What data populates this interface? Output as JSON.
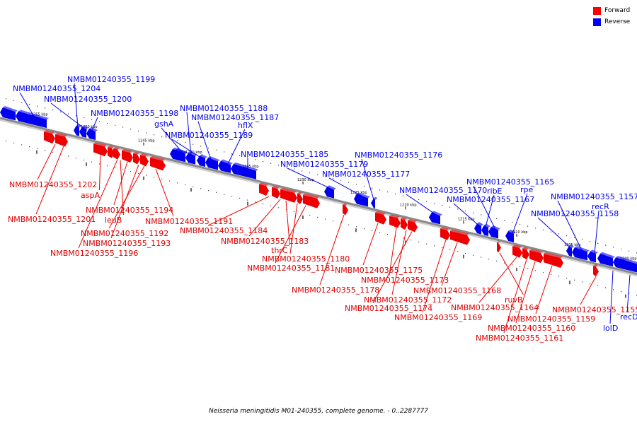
{
  "legend": [
    {
      "label": "Forward",
      "color": "#ff0000"
    },
    {
      "label": "Reverse",
      "color": "#0000ff"
    }
  ],
  "caption": "Neisseria meningitidis M01-240355, complete genome. - 0..2287777",
  "colors": {
    "forward": "#ee0000",
    "reverse": "#0000ee",
    "backbone": "#8a8a8a"
  },
  "scale_labels": [
    "1255 kbp",
    "1250 kbp",
    "1245 kbp",
    "1240 kbp",
    "1235 kbp",
    "1230 kbp",
    "1225 kbp",
    "1220 kbp",
    "1215 kbp",
    "1210 kbp",
    "1205 kbp",
    "1200 kbp"
  ],
  "reverse_genes": [
    {
      "name": "NMBM01240355_1204",
      "label": "NMBM01240355_1204"
    },
    {
      "name": "NMBM01240355_1199",
      "label": "NMBM01240355_1199"
    },
    {
      "name": "NMBM01240355_1200",
      "label": "NMBM01240355_1200"
    },
    {
      "name": "NMBM01240355_1198",
      "label": "NMBM01240355_1198"
    },
    {
      "name": "gshA",
      "label": "gshA"
    },
    {
      "name": "NMBM01240355_1189",
      "label": "NMBM01240355_1189"
    },
    {
      "name": "NMBM01240355_1188",
      "label": "NMBM01240355_1188"
    },
    {
      "name": "NMBM01240355_1187",
      "label": "NMBM01240355_1187"
    },
    {
      "name": "hflX",
      "label": "hflX"
    },
    {
      "name": "NMBM01240355_1185",
      "label": "NMBM01240355_1185"
    },
    {
      "name": "NMBM01240355_1179",
      "label": "NMBM01240355_1179"
    },
    {
      "name": "NMBM01240355_1177",
      "label": "NMBM01240355_1177"
    },
    {
      "name": "NMBM01240355_1176",
      "label": "NMBM01240355_1176"
    },
    {
      "name": "NMBM01240355_1170",
      "label": "NMBM01240355_1170"
    },
    {
      "name": "NMBM01240355_1167",
      "label": "NMBM01240355_1167"
    },
    {
      "name": "ribE",
      "label": "ribE"
    },
    {
      "name": "NMBM01240355_1165",
      "label": "NMBM01240355_1165"
    },
    {
      "name": "rpe",
      "label": "rpe"
    },
    {
      "name": "NMBM01240355_1158",
      "label": "NMBM01240355_1158"
    },
    {
      "name": "NMBM01240355_1157",
      "label": "NMBM01240355_1157"
    },
    {
      "name": "recR",
      "label": "recR"
    },
    {
      "name": "lolD",
      "label": "lolD"
    },
    {
      "name": "recD",
      "label": "recD"
    }
  ],
  "forward_genes": [
    {
      "name": "NMBM01240355_1202",
      "label": "NMBM01240355_1202"
    },
    {
      "name": "NMBM01240355_1201",
      "label": "NMBM01240355_1201"
    },
    {
      "name": "aspA",
      "label": "aspA"
    },
    {
      "name": "NMBM01240355_1196",
      "label": "NMBM01240355_1196"
    },
    {
      "name": "leuB",
      "label": "leuB"
    },
    {
      "name": "NMBM01240355_1194",
      "label": "NMBM01240355_1194"
    },
    {
      "name": "NMBM01240355_1193",
      "label": "NMBM01240355_1193"
    },
    {
      "name": "NMBM01240355_1192",
      "label": "NMBM01240355_1192"
    },
    {
      "name": "NMBM01240355_1191",
      "label": "NMBM01240355_1191"
    },
    {
      "name": "NMBM01240355_1184",
      "label": "NMBM01240355_1184"
    },
    {
      "name": "NMBM01240355_1183",
      "label": "NMBM01240355_1183"
    },
    {
      "name": "thrC",
      "label": "thrC"
    },
    {
      "name": "NMBM01240355_1180",
      "label": "NMBM01240355_1180"
    },
    {
      "name": "NMBM01240355_1181",
      "label": "NMBM01240355_1181"
    },
    {
      "name": "NMBM01240355_1178",
      "label": "NMBM01240355_1178"
    },
    {
      "name": "NMBM01240355_1175",
      "label": "NMBM01240355_1175"
    },
    {
      "name": "NMBM01240355_1173",
      "label": "NMBM01240355_1173"
    },
    {
      "name": "NMBM01240355_1172",
      "label": "NMBM01240355_1172"
    },
    {
      "name": "NMBM01240355_1174",
      "label": "NMBM01240355_1174"
    },
    {
      "name": "NMBM01240355_1169",
      "label": "NMBM01240355_1169"
    },
    {
      "name": "NMBM01240355_1168",
      "label": "NMBM01240355_1168"
    },
    {
      "name": "ruvB",
      "label": "ruvB"
    },
    {
      "name": "NMBM01240355_1164",
      "label": "NMBM01240355_1164"
    },
    {
      "name": "NMBM01240355_1159",
      "label": "NMBM01240355_1159"
    },
    {
      "name": "NMBM01240355_1160",
      "label": "NMBM01240355_1160"
    },
    {
      "name": "NMBM01240355_1161",
      "label": "NMBM01240355_1161"
    },
    {
      "name": "NMBM01240355_1155",
      "label": "NMBM01240355_1155"
    }
  ]
}
